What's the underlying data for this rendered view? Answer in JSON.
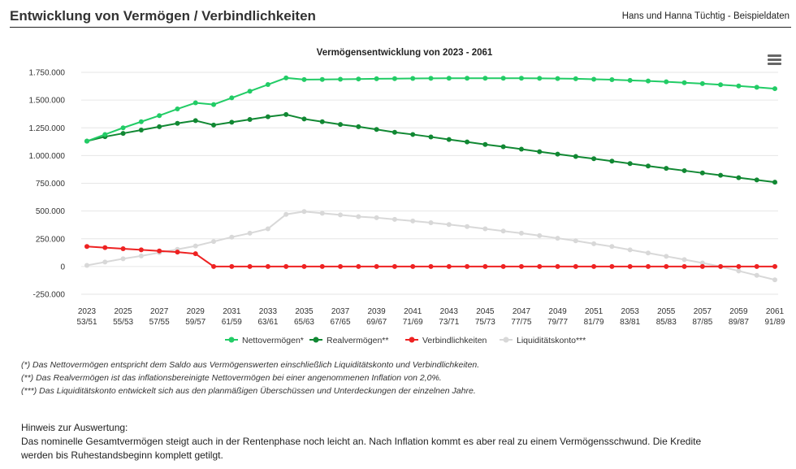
{
  "header": {
    "title": "Entwicklung von Vermögen / Verbindlichkeiten",
    "subtitle": "Hans und Hanna Tüchtig - Beispieldaten"
  },
  "chart_data": {
    "type": "line",
    "title": "Vermögensentwicklung von 2023 - 2061",
    "xlabel": "",
    "ylabel": "",
    "ylim": [
      -250000,
      1750000
    ],
    "yticks": [
      1750000,
      1500000,
      1250000,
      1000000,
      750000,
      500000,
      250000,
      0,
      -250000
    ],
    "ytick_labels": [
      "1.750.000",
      "1.500.000",
      "1.250.000",
      "1.000.000",
      "750.000",
      "500.000",
      "250.000",
      "0",
      "-250.000"
    ],
    "x": [
      2023,
      2024,
      2025,
      2026,
      2027,
      2028,
      2029,
      2030,
      2031,
      2032,
      2033,
      2034,
      2035,
      2036,
      2037,
      2038,
      2039,
      2040,
      2041,
      2042,
      2043,
      2044,
      2045,
      2046,
      2047,
      2048,
      2049,
      2050,
      2051,
      2052,
      2053,
      2054,
      2055,
      2056,
      2057,
      2058,
      2059,
      2060,
      2061
    ],
    "xtick_labels": [
      {
        "year": "2023",
        "ages": "53/51"
      },
      {
        "year": "2025",
        "ages": "55/53"
      },
      {
        "year": "2027",
        "ages": "57/55"
      },
      {
        "year": "2029",
        "ages": "59/57"
      },
      {
        "year": "2031",
        "ages": "61/59"
      },
      {
        "year": "2033",
        "ages": "63/61"
      },
      {
        "year": "2035",
        "ages": "65/63"
      },
      {
        "year": "2037",
        "ages": "67/65"
      },
      {
        "year": "2039",
        "ages": "69/67"
      },
      {
        "year": "2041",
        "ages": "71/69"
      },
      {
        "year": "2043",
        "ages": "73/71"
      },
      {
        "year": "2045",
        "ages": "75/73"
      },
      {
        "year": "2047",
        "ages": "77/75"
      },
      {
        "year": "2049",
        "ages": "79/77"
      },
      {
        "year": "2051",
        "ages": "81/79"
      },
      {
        "year": "2053",
        "ages": "83/81"
      },
      {
        "year": "2055",
        "ages": "85/83"
      },
      {
        "year": "2057",
        "ages": "87/85"
      },
      {
        "year": "2059",
        "ages": "89/87"
      },
      {
        "year": "2061",
        "ages": "91/89"
      }
    ],
    "grid": true,
    "legend": "bottom",
    "series": [
      {
        "name": "Nettovermögen*",
        "color": "#22cc66",
        "values": [
          1130000,
          1190000,
          1250000,
          1305000,
          1360000,
          1420000,
          1475000,
          1460000,
          1520000,
          1580000,
          1640000,
          1700000,
          1685000,
          1686000,
          1688000,
          1690000,
          1692000,
          1693000,
          1695000,
          1696000,
          1697000,
          1697000,
          1697000,
          1697000,
          1697000,
          1696000,
          1694000,
          1692000,
          1688000,
          1684000,
          1678000,
          1672000,
          1665000,
          1657000,
          1648000,
          1638000,
          1627000,
          1615000,
          1603000
        ]
      },
      {
        "name": "Realvermögen**",
        "color": "#118833",
        "values": [
          1130000,
          1170000,
          1200000,
          1230000,
          1260000,
          1290000,
          1315000,
          1275000,
          1300000,
          1325000,
          1350000,
          1370000,
          1330000,
          1305000,
          1280000,
          1260000,
          1235000,
          1210000,
          1190000,
          1168000,
          1145000,
          1123000,
          1100000,
          1080000,
          1058000,
          1035000,
          1013000,
          992000,
          972000,
          950000,
          928000,
          906000,
          885000,
          864000,
          843000,
          822000,
          800000,
          780000,
          760000
        ]
      },
      {
        "name": "Verbindlichkeiten",
        "color": "#ee2222",
        "values": [
          180000,
          170000,
          160000,
          150000,
          140000,
          130000,
          115000,
          0,
          0,
          0,
          0,
          0,
          0,
          0,
          0,
          0,
          0,
          0,
          0,
          0,
          0,
          0,
          0,
          0,
          0,
          0,
          0,
          0,
          0,
          0,
          0,
          0,
          0,
          0,
          0,
          0,
          0,
          0,
          0
        ]
      },
      {
        "name": "Liquiditätskonto***",
        "color": "#d8d8d8",
        "values": [
          10000,
          40000,
          70000,
          95000,
          125000,
          155000,
          185000,
          225000,
          265000,
          300000,
          340000,
          470000,
          495000,
          480000,
          465000,
          450000,
          440000,
          425000,
          410000,
          395000,
          378000,
          360000,
          340000,
          320000,
          300000,
          278000,
          255000,
          232000,
          205000,
          180000,
          150000,
          122000,
          92000,
          62000,
          32000,
          0,
          -40000,
          -80000,
          -120000
        ]
      }
    ]
  },
  "footnotes": [
    "(*)   Das Nettovermögen entspricht dem Saldo aus Vermögenswerten einschließlich Liquiditätskonto und Verbindlichkeiten.",
    "(**)  Das Realvermögen ist das inflationsbereinigte Nettovermögen bei einer angenommenen Inflation von 2,0%.",
    "(***) Das Liquiditätskonto entwickelt sich aus den planmäßigen Überschüssen und Unterdeckungen der einzelnen Jahre."
  ],
  "hint": {
    "heading": "Hinweis zur Auswertung:",
    "text": "Das nominelle Gesamtvermögen steigt auch in der Rentenphase noch leicht an. Nach Inflation kommt es aber real zu einem Vermögensschwund. Die Kredite werden bis Ruhestandsbeginn komplett getilgt."
  },
  "icons": {
    "chart_menu": "hamburger-menu-icon"
  }
}
